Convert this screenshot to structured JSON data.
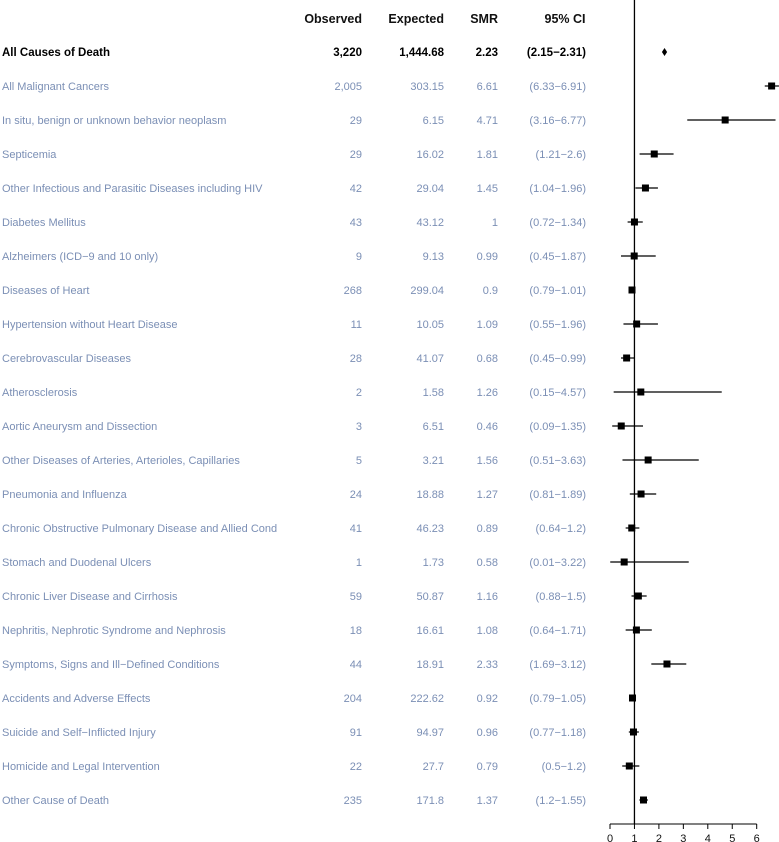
{
  "chart_data": {
    "type": "forest",
    "columns": {
      "observed": "Observed",
      "expected": "Expected",
      "smr": "SMR",
      "ci": "95% CI"
    },
    "x_axis": {
      "ticks": [
        "0",
        "1",
        "2",
        "3",
        "4",
        "5",
        "6"
      ],
      "min": 0,
      "max": 6,
      "reference_line": 1
    },
    "rows": [
      {
        "label": "All Causes of Death",
        "observed": "3,220",
        "expected": "1,444.68",
        "smr": "2.23",
        "ci": "(2.15−2.31)",
        "est": 2.23,
        "lo": 2.15,
        "hi": 2.31,
        "total": true
      },
      {
        "label": "All Malignant Cancers",
        "observed": "2,005",
        "expected": "303.15",
        "smr": "6.61",
        "ci": "(6.33−6.91)",
        "est": 6.61,
        "lo": 6.33,
        "hi": 6.91
      },
      {
        "label": "In situ, benign or unknown behavior neoplasm",
        "observed": "29",
        "expected": "6.15",
        "smr": "4.71",
        "ci": "(3.16−6.77)",
        "est": 4.71,
        "lo": 3.16,
        "hi": 6.77
      },
      {
        "label": "Septicemia",
        "observed": "29",
        "expected": "16.02",
        "smr": "1.81",
        "ci": "(1.21−2.6)",
        "est": 1.81,
        "lo": 1.21,
        "hi": 2.6
      },
      {
        "label": "Other Infectious and Parasitic Diseases including HIV",
        "observed": "42",
        "expected": "29.04",
        "smr": "1.45",
        "ci": "(1.04−1.96)",
        "est": 1.45,
        "lo": 1.04,
        "hi": 1.96
      },
      {
        "label": "Diabetes Mellitus",
        "observed": "43",
        "expected": "43.12",
        "smr": "1",
        "ci": "(0.72−1.34)",
        "est": 1,
        "lo": 0.72,
        "hi": 1.34
      },
      {
        "label": "Alzheimers (ICD−9 and 10 only)",
        "observed": "9",
        "expected": "9.13",
        "smr": "0.99",
        "ci": "(0.45−1.87)",
        "est": 0.99,
        "lo": 0.45,
        "hi": 1.87
      },
      {
        "label": "Diseases of Heart",
        "observed": "268",
        "expected": "299.04",
        "smr": "0.9",
        "ci": "(0.79−1.01)",
        "est": 0.9,
        "lo": 0.79,
        "hi": 1.01
      },
      {
        "label": "Hypertension without Heart Disease",
        "observed": "11",
        "expected": "10.05",
        "smr": "1.09",
        "ci": "(0.55−1.96)",
        "est": 1.09,
        "lo": 0.55,
        "hi": 1.96
      },
      {
        "label": "Cerebrovascular Diseases",
        "observed": "28",
        "expected": "41.07",
        "smr": "0.68",
        "ci": "(0.45−0.99)",
        "est": 0.68,
        "lo": 0.45,
        "hi": 0.99
      },
      {
        "label": "Atherosclerosis",
        "observed": "2",
        "expected": "1.58",
        "smr": "1.26",
        "ci": "(0.15−4.57)",
        "est": 1.26,
        "lo": 0.15,
        "hi": 4.57
      },
      {
        "label": "Aortic Aneurysm and Dissection",
        "observed": "3",
        "expected": "6.51",
        "smr": "0.46",
        "ci": "(0.09−1.35)",
        "est": 0.46,
        "lo": 0.09,
        "hi": 1.35
      },
      {
        "label": "Other Diseases of Arteries, Arterioles, Capillaries",
        "observed": "5",
        "expected": "3.21",
        "smr": "1.56",
        "ci": "(0.51−3.63)",
        "est": 1.56,
        "lo": 0.51,
        "hi": 3.63
      },
      {
        "label": "Pneumonia and Influenza",
        "observed": "24",
        "expected": "18.88",
        "smr": "1.27",
        "ci": "(0.81−1.89)",
        "est": 1.27,
        "lo": 0.81,
        "hi": 1.89
      },
      {
        "label": "Chronic Obstructive Pulmonary Disease and Allied Cond",
        "observed": "41",
        "expected": "46.23",
        "smr": "0.89",
        "ci": "(0.64−1.2)",
        "est": 0.89,
        "lo": 0.64,
        "hi": 1.2
      },
      {
        "label": "Stomach and Duodenal Ulcers",
        "observed": "1",
        "expected": "1.73",
        "smr": "0.58",
        "ci": "(0.01−3.22)",
        "est": 0.58,
        "lo": 0.01,
        "hi": 3.22
      },
      {
        "label": "Chronic Liver Disease and Cirrhosis",
        "observed": "59",
        "expected": "50.87",
        "smr": "1.16",
        "ci": "(0.88−1.5)",
        "est": 1.16,
        "lo": 0.88,
        "hi": 1.5
      },
      {
        "label": "Nephritis, Nephrotic Syndrome and Nephrosis",
        "observed": "18",
        "expected": "16.61",
        "smr": "1.08",
        "ci": "(0.64−1.71)",
        "est": 1.08,
        "lo": 0.64,
        "hi": 1.71
      },
      {
        "label": "Symptoms, Signs and Ill−Defined Conditions",
        "observed": "44",
        "expected": "18.91",
        "smr": "2.33",
        "ci": "(1.69−3.12)",
        "est": 2.33,
        "lo": 1.69,
        "hi": 3.12
      },
      {
        "label": "Accidents and Adverse Effects",
        "observed": "204",
        "expected": "222.62",
        "smr": "0.92",
        "ci": "(0.79−1.05)",
        "est": 0.92,
        "lo": 0.79,
        "hi": 1.05
      },
      {
        "label": "Suicide and Self−Inflicted Injury",
        "observed": "91",
        "expected": "94.97",
        "smr": "0.96",
        "ci": "(0.77−1.18)",
        "est": 0.96,
        "lo": 0.77,
        "hi": 1.18
      },
      {
        "label": "Homicide and Legal Intervention",
        "observed": "22",
        "expected": "27.7",
        "smr": "0.79",
        "ci": "(0.5−1.2)",
        "est": 0.79,
        "lo": 0.5,
        "hi": 1.2
      },
      {
        "label": "Other Cause of Death",
        "observed": "235",
        "expected": "171.8",
        "smr": "1.37",
        "ci": "(1.2−1.55)",
        "est": 1.37,
        "lo": 1.2,
        "hi": 1.55
      }
    ],
    "colors": {
      "label_text": "#7b8fb5",
      "total_text": "#000000",
      "marks": "#000000"
    }
  }
}
